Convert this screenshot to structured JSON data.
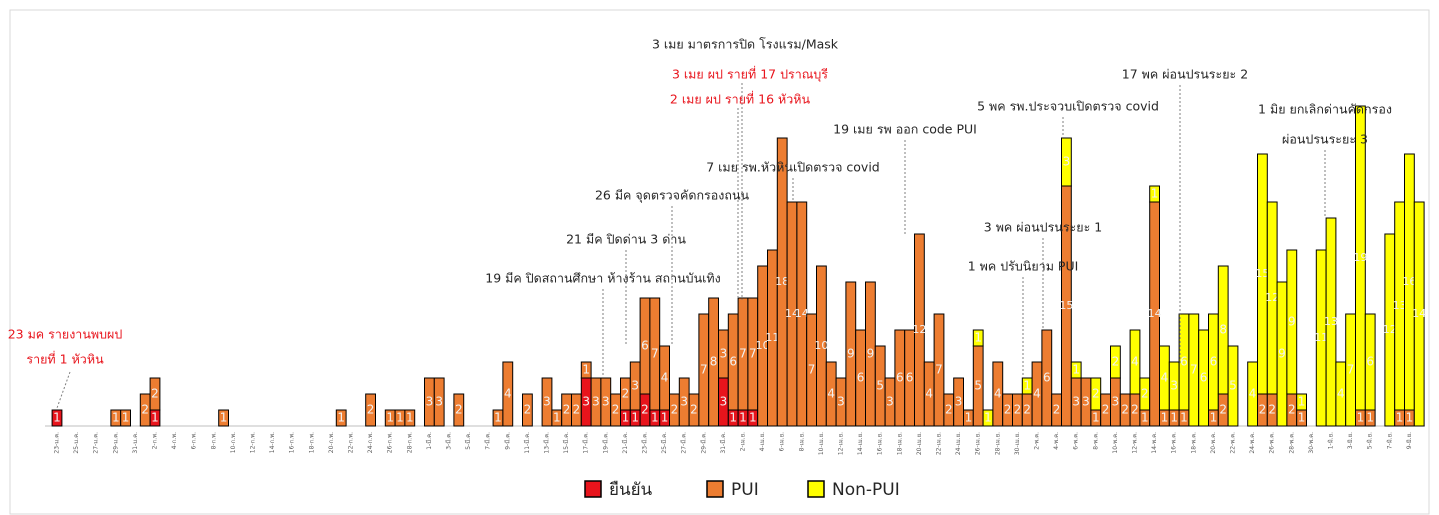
{
  "chart_data": {
    "type": "stacked-bar",
    "categories": [
      "23-ม.ค.",
      null,
      "25-ม.ค.",
      null,
      "27-ม.ค.",
      null,
      "29-ม.ค.",
      null,
      "31-ม.ค.",
      null,
      "2-ก.พ.",
      null,
      "4-ก.พ.",
      null,
      "6-ก.พ.",
      null,
      "8-ก.พ.",
      null,
      "10-ก.พ.",
      null,
      "12-ก.พ.",
      null,
      "14-ก.พ.",
      null,
      "16-ก.พ.",
      null,
      "18-ก.พ.",
      null,
      "20-ก.พ.",
      null,
      "22-ก.พ.",
      null,
      "24-ก.พ.",
      null,
      "26-ก.พ.",
      null,
      "28-ก.พ.",
      null,
      "1-มี.ค.",
      null,
      "3-มี.ค.",
      null,
      "5-มี.ค.",
      null,
      "7-มี.ค.",
      null,
      "9-มี.ค.",
      null,
      "11-มี.ค.",
      null,
      "13-มี.ค.",
      null,
      "15-มี.ค.",
      null,
      "17-มี.ค.",
      null,
      "19-มี.ค.",
      null,
      "21-มี.ค.",
      null,
      "23-มี.ค.",
      null,
      "25-มี.ค.",
      null,
      "27-มี.ค.",
      null,
      "29-มี.ค.",
      null,
      "31-มี.ค.",
      null,
      "2-เม.ย.",
      null,
      "4-เม.ย.",
      null,
      "6-เม.ย.",
      null,
      "8-เม.ย.",
      null,
      "10-เม.ย.",
      null,
      "12-เม.ย.",
      null,
      "14-เม.ย.",
      null,
      "16-เม.ย.",
      null,
      "18-เม.ย.",
      null,
      "20-เม.ย.",
      null,
      "22-เม.ย.",
      null,
      "24-เม.ย.",
      null,
      "26-เม.ย.",
      null,
      "28-เม.ย.",
      null,
      "30-เม.ย.",
      null,
      "2-พ.ค.",
      null,
      "4-พ.ค.",
      null,
      "6-พ.ค.",
      null,
      "8-พ.ค.",
      null,
      "10-พ.ค.",
      null,
      "12-พ.ค.",
      null,
      "14-พ.ค.",
      null,
      "16-พ.ค.",
      null,
      "18-พ.ค.",
      null,
      "20-พ.ค.",
      null,
      "22-พ.ค.",
      null,
      "24-พ.ค.",
      null,
      "26-พ.ค.",
      null,
      "28-พ.ค.",
      null,
      "30-พ.ค.",
      null,
      "1-มิ.ย.",
      null,
      "3-มิ.ย.",
      null,
      "5-มิ.ย.",
      null,
      "7-มิ.ย.",
      null,
      "9-มิ.ย.",
      null
    ],
    "series": [
      {
        "name": "ยืนยัน",
        "color": "#e8141c",
        "values": [
          1,
          0,
          0,
          0,
          0,
          0,
          0,
          0,
          0,
          0,
          1,
          0,
          0,
          0,
          0,
          0,
          0,
          0,
          0,
          0,
          0,
          0,
          0,
          0,
          0,
          0,
          0,
          0,
          0,
          0,
          0,
          0,
          0,
          0,
          0,
          0,
          0,
          0,
          0,
          0,
          0,
          0,
          0,
          0,
          0,
          0,
          0,
          0,
          0,
          0,
          0,
          0,
          0,
          0,
          3,
          0,
          0,
          0,
          1,
          1,
          2,
          1,
          1,
          0,
          0,
          0,
          0,
          0,
          3,
          1,
          1,
          1,
          0,
          0,
          0,
          0,
          0,
          0,
          0,
          0,
          0,
          0,
          0,
          0,
          0,
          0,
          0,
          0,
          0,
          0,
          0,
          0,
          0,
          0,
          0,
          0,
          0,
          0,
          0,
          0,
          0,
          0,
          0,
          0,
          0,
          0,
          0,
          0,
          0,
          0,
          0,
          0,
          0,
          0,
          0,
          0,
          0,
          0,
          0,
          0,
          0,
          0,
          0,
          0,
          0,
          0,
          0,
          0,
          0,
          0,
          0,
          0,
          0,
          0,
          0,
          0,
          0,
          0,
          0,
          0
        ]
      },
      {
        "name": "PUI",
        "color": "#ed7d31",
        "values": [
          0,
          0,
          0,
          0,
          0,
          0,
          1,
          1,
          0,
          2,
          2,
          0,
          0,
          0,
          0,
          0,
          0,
          1,
          0,
          0,
          0,
          0,
          0,
          0,
          0,
          0,
          0,
          0,
          0,
          1,
          0,
          0,
          2,
          0,
          1,
          1,
          1,
          0,
          3,
          3,
          0,
          2,
          0,
          0,
          0,
          1,
          4,
          0,
          2,
          0,
          3,
          1,
          2,
          2,
          1,
          3,
          3,
          2,
          2,
          3,
          6,
          7,
          4,
          2,
          3,
          2,
          7,
          8,
          3,
          6,
          7,
          7,
          10,
          11,
          18,
          14,
          14,
          7,
          10,
          4,
          3,
          9,
          6,
          9,
          5,
          3,
          6,
          6,
          12,
          4,
          7,
          2,
          3,
          1,
          5,
          0,
          4,
          2,
          2,
          2,
          4,
          6,
          2,
          15,
          3,
          3,
          1,
          2,
          3,
          2,
          2,
          1,
          14,
          1,
          1,
          1,
          0,
          0,
          1,
          2,
          0,
          0,
          0,
          2,
          2,
          0,
          2,
          1,
          0,
          0,
          0,
          0,
          0,
          1,
          1,
          0,
          0,
          1,
          1,
          0
        ]
      },
      {
        "name": "Non-PUI",
        "color": "#ffff00",
        "values": [
          0,
          0,
          0,
          0,
          0,
          0,
          0,
          0,
          0,
          0,
          0,
          0,
          0,
          0,
          0,
          0,
          0,
          0,
          0,
          0,
          0,
          0,
          0,
          0,
          0,
          0,
          0,
          0,
          0,
          0,
          0,
          0,
          0,
          0,
          0,
          0,
          0,
          0,
          0,
          0,
          0,
          0,
          0,
          0,
          0,
          0,
          0,
          0,
          0,
          0,
          0,
          0,
          0,
          0,
          0,
          0,
          0,
          0,
          0,
          0,
          0,
          0,
          0,
          0,
          0,
          0,
          0,
          0,
          0,
          0,
          0,
          0,
          0,
          0,
          0,
          0,
          0,
          0,
          0,
          0,
          0,
          0,
          0,
          0,
          0,
          0,
          0,
          0,
          0,
          0,
          0,
          0,
          0,
          0,
          1,
          1,
          0,
          0,
          0,
          1,
          0,
          0,
          0,
          3,
          1,
          0,
          2,
          0,
          2,
          0,
          4,
          2,
          1,
          4,
          3,
          6,
          7,
          6,
          6,
          8,
          5,
          0,
          4,
          15,
          12,
          9,
          9,
          1,
          0,
          11,
          13,
          4,
          7,
          19,
          6,
          0,
          12,
          13,
          16,
          14
        ]
      }
    ],
    "ylim": [
      0,
      20
    ],
    "annotations": [
      {
        "text": "3 เมย มาตรการปิด โรงแรม/Mask",
        "color": "#262626"
      },
      {
        "text": "3 เมย ผป รายที่ 17 ปราณบุรี",
        "color": "#e8141c"
      },
      {
        "text": "2 เมย ผป รายที่ 16 หัวหิน",
        "color": "#e8141c"
      },
      {
        "text": "17 พค ผ่อนปรนระยะ 2",
        "color": "#262626"
      },
      {
        "text": "5 พค รพ.ประจวบเปิดตรวจ covid",
        "color": "#262626"
      },
      {
        "text": "1 มิย ยกเลิกด่านคัดกรอง",
        "color": "#262626"
      },
      {
        "text": "ผ่อนปรนระยะ 3",
        "color": "#262626"
      },
      {
        "text": "19 เมย รพ ออก code PUI",
        "color": "#262626"
      },
      {
        "text": "7 เมย รพ.หัวหินเปิดตรวจ covid",
        "color": "#262626"
      },
      {
        "text": "26 มีค จุดตรวจคัดกรองถนน",
        "color": "#262626"
      },
      {
        "text": "3 พค ผ่อนปรนระยะ 1",
        "color": "#262626"
      },
      {
        "text": "21 มีค ปิดด่าน 3 ด่าน",
        "color": "#262626"
      },
      {
        "text": "1 พค ปรับนิยาม PUI",
        "color": "#262626"
      },
      {
        "text": "19 มีค ปิดสถานศึกษา ห้างร้าน สถานบันเทิง",
        "color": "#262626"
      },
      {
        "text": "23 มค รายงานพบผป",
        "color": "#e8141c"
      },
      {
        "text": "รายที่ 1 หัวหิน",
        "color": "#e8141c"
      }
    ]
  }
}
